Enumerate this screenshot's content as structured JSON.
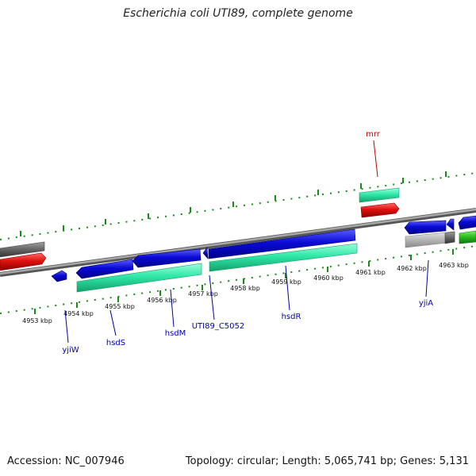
{
  "header": {
    "title": "Escherichia coli UTI89, complete genome"
  },
  "footer": {
    "accession": "Accession: NC_007946",
    "summary": "Topology: circular; Length: 5,065,741 bp; Genes: 5,131"
  },
  "map": {
    "ruler_labels": [
      "4953 kbp",
      "4954 kbp",
      "4955 kbp",
      "4956 kbp",
      "4957 kbp",
      "4958 kbp",
      "4959 kbp",
      "4960 kbp",
      "4961 kbp",
      "4962 kbp",
      "4963 kbp"
    ],
    "gene_labels": {
      "mrr": "mrr",
      "yjiW": "yjiW",
      "hsdS": "hsdS",
      "hsdM": "hsdM",
      "UTI89_C5052": "UTI89_C5052",
      "hsdR": "hsdR",
      "yjiA": "yjiA"
    },
    "colors": {
      "cds": "#0a0ad6",
      "gene": "#2ee8a8",
      "trna": "#e01010",
      "pseudo": "#6a6a6a",
      "misc": "#bbbbbb",
      "other_green": "#2bc020",
      "backbone": "#888888",
      "ticks": "#1a8a1a",
      "gene_label_color": "#0000b0",
      "mrr_label_color": "#c00000"
    }
  }
}
